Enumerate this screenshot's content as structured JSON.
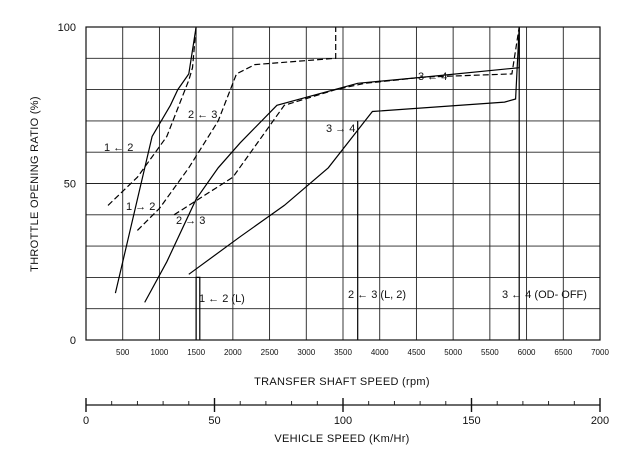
{
  "chart_data": {
    "type": "line",
    "title": "",
    "ylabel": "THROTTLE OPENING RATIO (%)",
    "xlabel": "TRANSFER SHAFT SPEED (rpm)",
    "xlim": [
      0,
      7000
    ],
    "ylim": [
      0,
      100
    ],
    "x_ticks": [
      "500",
      "1000",
      "1500",
      "2000",
      "2500",
      "3000",
      "3500",
      "4000",
      "4500",
      "5000",
      "5500",
      "6000",
      "6500",
      "7000"
    ],
    "y_ticks": [
      "0",
      "50",
      "100"
    ],
    "grid": true,
    "secondary_axis": {
      "label": "VEHICLE SPEED (Km/Hr)",
      "lim": [
        0,
        200
      ],
      "ticks": [
        "0",
        "50",
        "100",
        "150",
        "200"
      ]
    },
    "series": [
      {
        "name": "1 → 2",
        "style": "solid",
        "points": [
          [
            400,
            15
          ],
          [
            600,
            35
          ],
          [
            900,
            65
          ],
          [
            1150,
            75
          ],
          [
            1250,
            80
          ],
          [
            1400,
            85
          ],
          [
            1500,
            100
          ]
        ]
      },
      {
        "name": "1 ← 2",
        "style": "dashed",
        "points": [
          [
            300,
            43
          ],
          [
            700,
            52
          ],
          [
            1100,
            65
          ],
          [
            1350,
            80
          ],
          [
            1400,
            83
          ],
          [
            1450,
            87
          ],
          [
            1500,
            100
          ]
        ]
      },
      {
        "name": "2 → 3",
        "style": "solid",
        "points": [
          [
            800,
            12
          ],
          [
            1100,
            25
          ],
          [
            1500,
            45
          ],
          [
            1800,
            55
          ],
          [
            2100,
            63
          ],
          [
            2600,
            75
          ],
          [
            3700,
            82
          ],
          [
            4600,
            84
          ],
          [
            5900,
            87
          ],
          [
            5900,
            100
          ]
        ]
      },
      {
        "name": "2 ← 3",
        "style": "dashed",
        "points": [
          [
            700,
            35
          ],
          [
            1000,
            42
          ],
          [
            1400,
            55
          ],
          [
            1800,
            70
          ],
          [
            2050,
            85
          ],
          [
            2300,
            88
          ],
          [
            3400,
            90
          ],
          [
            3400,
            100
          ]
        ]
      },
      {
        "name": "3 → 4",
        "style": "solid",
        "points": [
          [
            1400,
            21
          ],
          [
            2100,
            33
          ],
          [
            2700,
            43
          ],
          [
            3300,
            55
          ],
          [
            3800,
            70
          ],
          [
            3900,
            73
          ],
          [
            5700,
            76
          ],
          [
            5850,
            77
          ],
          [
            5900,
            100
          ]
        ]
      },
      {
        "name": "3 ← 4",
        "style": "dashed",
        "points": [
          [
            1200,
            40
          ],
          [
            2000,
            52
          ],
          [
            2700,
            75
          ],
          [
            3400,
            80
          ],
          [
            3800,
            82
          ],
          [
            4600,
            84
          ],
          [
            5800,
            85
          ],
          [
            5900,
            100
          ]
        ]
      },
      {
        "name": "1 ← 2 (L)",
        "style": "solid",
        "points": [
          [
            1500,
            0
          ],
          [
            1500,
            20
          ],
          [
            1550,
            20
          ],
          [
            1550,
            0
          ]
        ]
      },
      {
        "name": "2 ← 3 (L, 2)",
        "style": "solid",
        "points": [
          [
            3700,
            0
          ],
          [
            3700,
            70
          ]
        ]
      },
      {
        "name": "3 ← 4 (OD- OFF)",
        "style": "solid",
        "points": [
          [
            5900,
            0
          ],
          [
            5900,
            100
          ]
        ]
      }
    ],
    "annotations": [
      "1 ← 2",
      "1 → 2",
      "2 ← 3",
      "2 → 3",
      "3 → 4",
      "3 ← 4",
      "1 ← 2 (L)",
      "2 ← 3 (L, 2)",
      "3 ← 4 (OD- OFF)"
    ]
  }
}
